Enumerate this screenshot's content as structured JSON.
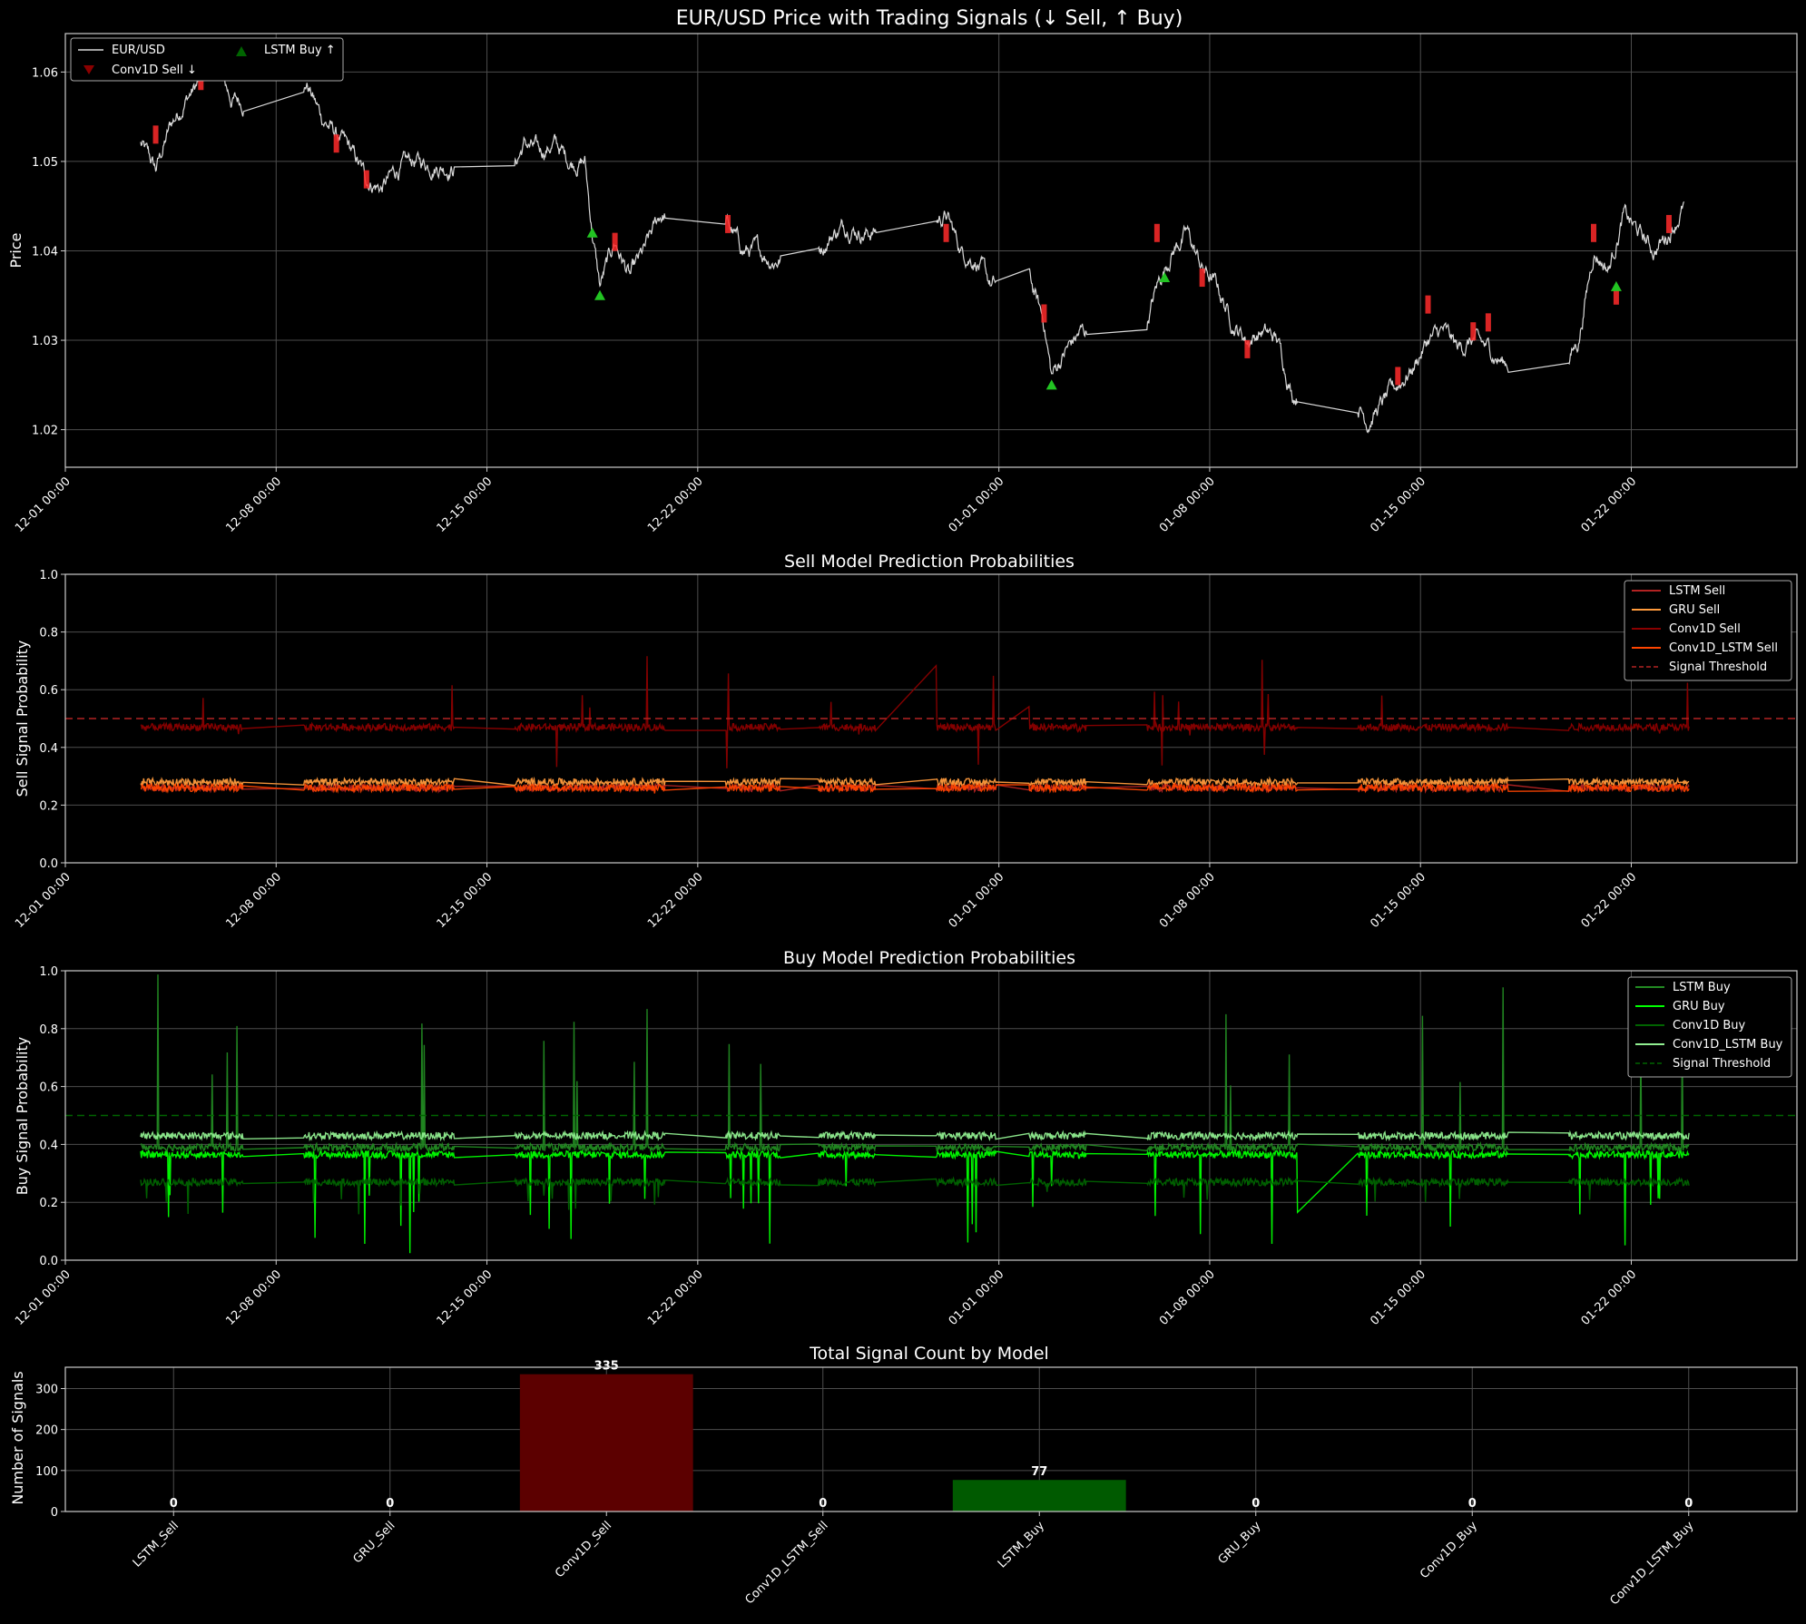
{
  "chart_data": [
    {
      "type": "line",
      "title": "EUR/USD Price with Trading Signals (↓ Sell, ↑ Buy)",
      "xlabel": "",
      "ylabel": "Price",
      "x_ticks": [
        "12-01 00:00",
        "12-08 00:00",
        "12-15 00:00",
        "12-22 00:00",
        "01-01 00:00",
        "01-08 00:00",
        "01-15 00:00",
        "01-22 00:00"
      ],
      "y_ticks": [
        "1.02",
        "1.03",
        "1.04",
        "1.05",
        "1.06"
      ],
      "ylim": [
        1.0158,
        1.0643
      ],
      "grid": true,
      "legend_position": "top-left",
      "legend": [
        {
          "label": "EUR/USD",
          "color": "#d9d9d9",
          "marker": "line"
        },
        {
          "label": "Conv1D Sell ↓",
          "color": "#8b0000",
          "marker": "triangle-down"
        },
        {
          "label": "LSTM Buy ↑",
          "color": "#006400",
          "marker": "triangle-up"
        }
      ],
      "series": [
        {
          "name": "EUR/USD",
          "color": "#d9d9d9",
          "points": [
            [
              "12-03 12:00",
              1.052
            ],
            [
              "12-04 00:00",
              1.049
            ],
            [
              "12-04 12:00",
              1.054
            ],
            [
              "12-05 00:00",
              1.057
            ],
            [
              "12-05 12:00",
              1.059
            ],
            [
              "12-06 00:00",
              1.061
            ],
            [
              "12-06 12:00",
              1.057
            ],
            [
              "12-08 12:00",
              1.0555
            ],
            [
              "12-09 00:00",
              1.059
            ],
            [
              "12-09 12:00",
              1.055
            ],
            [
              "12-10 00:00",
              1.053
            ],
            [
              "12-10 12:00",
              1.051
            ],
            [
              "12-11 00:00",
              1.048
            ],
            [
              "12-11 12:00",
              1.047
            ],
            [
              "12-12 00:00",
              1.049
            ],
            [
              "12-12 12:00",
              1.05
            ],
            [
              "12-15 18:00",
              1.0485
            ],
            [
              "12-16 06:00",
              1.052
            ],
            [
              "12-16 18:00",
              1.051
            ],
            [
              "12-17 06:00",
              1.052
            ],
            [
              "12-17 18:00",
              1.05
            ],
            [
              "12-18 06:00",
              1.05
            ],
            [
              "12-18 12:00",
              1.042
            ],
            [
              "12-18 18:00",
              1.036
            ],
            [
              "12-19 06:00",
              1.041
            ],
            [
              "12-19 18:00",
              1.037
            ],
            [
              "12-20 06:00",
              1.04
            ],
            [
              "12-20 18:00",
              1.044
            ],
            [
              "12-23 00:00",
              1.043
            ],
            [
              "12-23 12:00",
              1.04
            ],
            [
              "12-24 00:00",
              1.04
            ],
            [
              "12-24 12:00",
              1.039
            ],
            [
              "12-26 00:00",
              1.04
            ],
            [
              "12-26 12:00",
              1.042
            ],
            [
              "12-27 00:00",
              1.043
            ],
            [
              "12-27 12:00",
              1.042
            ],
            [
              "12-29 18:00",
              1.043
            ],
            [
              "12-30 06:00",
              1.044
            ],
            [
              "12-30 18:00",
              1.04
            ],
            [
              "12-31 06:00",
              1.039
            ],
            [
              "12-31 18:00",
              1.036
            ],
            [
              "01-02 00:00",
              1.037
            ],
            [
              "01-02 12:00",
              1.032
            ],
            [
              "01-02 18:00",
              1.026
            ],
            [
              "01-03 06:00",
              1.029
            ],
            [
              "01-03 18:00",
              1.031
            ],
            [
              "01-05 18:00",
              1.03
            ],
            [
              "01-06 06:00",
              1.036
            ],
            [
              "01-06 18:00",
              1.04
            ],
            [
              "01-07 06:00",
              1.042
            ],
            [
              "01-07 18:00",
              1.038
            ],
            [
              "01-08 06:00",
              1.036
            ],
            [
              "01-08 18:00",
              1.032
            ],
            [
              "01-09 06:00",
              1.03
            ],
            [
              "01-09 18:00",
              1.031
            ],
            [
              "01-10 06:00",
              1.03
            ],
            [
              "01-10 18:00",
              1.024
            ],
            [
              "01-12 18:00",
              1.024
            ],
            [
              "01-13 06:00",
              1.021
            ],
            [
              "01-13 18:00",
              1.023
            ],
            [
              "01-14 06:00",
              1.025
            ],
            [
              "01-14 18:00",
              1.027
            ],
            [
              "01-15 06:00",
              1.03
            ],
            [
              "01-15 18:00",
              1.031
            ],
            [
              "01-16 06:00",
              1.029
            ],
            [
              "01-16 18:00",
              1.03
            ],
            [
              "01-17 06:00",
              1.029
            ],
            [
              "01-17 18:00",
              1.0275
            ],
            [
              "01-19 18:00",
              1.027
            ],
            [
              "01-20 06:00",
              1.03
            ],
            [
              "01-20 18:00",
              1.04
            ],
            [
              "01-21 06:00",
              1.038
            ],
            [
              "01-21 18:00",
              1.044
            ],
            [
              "01-22 06:00",
              1.042
            ],
            [
              "01-22 18:00",
              1.04
            ],
            [
              "01-23 06:00",
              1.042
            ],
            [
              "01-23 18:00",
              1.045
            ]
          ]
        },
        {
          "name": "Conv1D Sell ↓",
          "color": "#8b0000",
          "points": [
            [
              "12-04 00:00",
              1.053
            ],
            [
              "12-05 12:00",
              1.059
            ],
            [
              "12-10 00:00",
              1.052
            ],
            [
              "12-11 00:00",
              1.048
            ],
            [
              "12-19 06:00",
              1.041
            ],
            [
              "12-23 00:00",
              1.043
            ],
            [
              "12-30 06:00",
              1.042
            ],
            [
              "01-02 12:00",
              1.033
            ],
            [
              "01-06 06:00",
              1.042
            ],
            [
              "01-07 18:00",
              1.037
            ],
            [
              "01-09 06:00",
              1.029
            ],
            [
              "01-14 06:00",
              1.026
            ],
            [
              "01-15 06:00",
              1.034
            ],
            [
              "01-16 18:00",
              1.031
            ],
            [
              "01-17 06:00",
              1.032
            ],
            [
              "01-20 18:00",
              1.042
            ],
            [
              "01-21 12:00",
              1.035
            ],
            [
              "01-23 06:00",
              1.043
            ]
          ]
        },
        {
          "name": "LSTM Buy ↑",
          "color": "#006400",
          "points": [
            [
              "12-18 12:00",
              1.042
            ],
            [
              "12-18 18:00",
              1.035
            ],
            [
              "01-02 18:00",
              1.025
            ],
            [
              "01-06 12:00",
              1.037
            ],
            [
              "01-21 12:00",
              1.036
            ]
          ]
        }
      ]
    },
    {
      "type": "line",
      "title": "Sell Model Prediction Probabilities",
      "xlabel": "",
      "ylabel": "Sell Signal Probability",
      "x_ticks": [
        "12-01 00:00",
        "12-08 00:00",
        "12-15 00:00",
        "12-22 00:00",
        "01-01 00:00",
        "01-08 00:00",
        "01-15 00:00",
        "01-22 00:00"
      ],
      "y_ticks": [
        "0.0",
        "0.2",
        "0.4",
        "0.6",
        "0.8",
        "1.0"
      ],
      "ylim": [
        0,
        1
      ],
      "grid": true,
      "legend_position": "top-right",
      "threshold": 0.5,
      "series": [
        {
          "name": "LSTM Sell",
          "color": "#b22222",
          "baseline": 0.26,
          "values": [
            0.26,
            0.25,
            0.26,
            0.26,
            0.25,
            0.26,
            0.26,
            0.25
          ]
        },
        {
          "name": "GRU Sell",
          "color": "#ff9a3c",
          "baseline": 0.28,
          "values": [
            0.28,
            0.28,
            0.28,
            0.28,
            0.28,
            0.28,
            0.28,
            0.28
          ]
        },
        {
          "name": "Conv1D Sell",
          "color": "#8b0000",
          "baseline": 0.47,
          "spikes_max": 0.72,
          "spikes_min": 0.31,
          "values": [
            0.47,
            0.59,
            0.47,
            0.44,
            0.48,
            0.72,
            0.31,
            0.69
          ]
        },
        {
          "name": "Conv1D_LSTM Sell",
          "color": "#ff4500",
          "baseline": 0.26,
          "values": [
            0.26,
            0.25,
            0.27,
            0.26,
            0.24,
            0.26,
            0.25,
            0.26
          ]
        },
        {
          "name": "Signal Threshold",
          "color": "#b22222",
          "dashed": true,
          "values": [
            0.5
          ]
        }
      ]
    },
    {
      "type": "line",
      "title": "Buy Model Prediction Probabilities",
      "xlabel": "",
      "ylabel": "Buy Signal Probability",
      "x_ticks": [
        "12-01 00:00",
        "12-08 00:00",
        "12-15 00:00",
        "12-22 00:00",
        "01-01 00:00",
        "01-08 00:00",
        "01-15 00:00",
        "01-22 00:00"
      ],
      "y_ticks": [
        "0.0",
        "0.2",
        "0.4",
        "0.6",
        "0.8",
        "1.0"
      ],
      "ylim": [
        0,
        1
      ],
      "grid": true,
      "legend_position": "top-right",
      "threshold": 0.5,
      "series": [
        {
          "name": "LSTM Buy",
          "color": "#228b22",
          "baseline": 0.39,
          "values": [
            0.39,
            0.38,
            0.99,
            0.4,
            0.96,
            0.87
          ]
        },
        {
          "name": "GRU Buy",
          "color": "#00ff00",
          "baseline": 0.365,
          "values": [
            0.365,
            0.1,
            0.02,
            0.01,
            0.0,
            0.02
          ]
        },
        {
          "name": "Conv1D Buy",
          "color": "#006400",
          "baseline": 0.27,
          "values": [
            0.27,
            0.17,
            0.26,
            0.2,
            0.27,
            0.14
          ]
        },
        {
          "name": "Conv1D_LSTM Buy",
          "color": "#90ee90",
          "baseline": 0.43,
          "values": [
            0.43,
            0.43,
            0.43,
            0.43,
            0.43,
            0.43
          ]
        },
        {
          "name": "Signal Threshold",
          "color": "#006400",
          "dashed": true,
          "values": [
            0.5
          ]
        }
      ]
    },
    {
      "type": "bar",
      "title": "Total Signal Count by Model",
      "xlabel": "",
      "ylabel": "Number of Signals",
      "categories": [
        "LSTM_Sell",
        "GRU_Sell",
        "Conv1D_Sell",
        "Conv1D_LSTM_Sell",
        "LSTM_Buy",
        "GRU_Buy",
        "Conv1D_Buy",
        "Conv1D_LSTM_Buy"
      ],
      "values": [
        0,
        0,
        335,
        0,
        77,
        0,
        0,
        0
      ],
      "colors": [
        "#8b0000",
        "#8b0000",
        "#5c0000",
        "#8b0000",
        "#005a00",
        "#005a00",
        "#005a00",
        "#005a00"
      ],
      "y_ticks": [
        "0",
        "100",
        "200",
        "300"
      ],
      "ylim": [
        0,
        352
      ],
      "grid": true
    }
  ]
}
